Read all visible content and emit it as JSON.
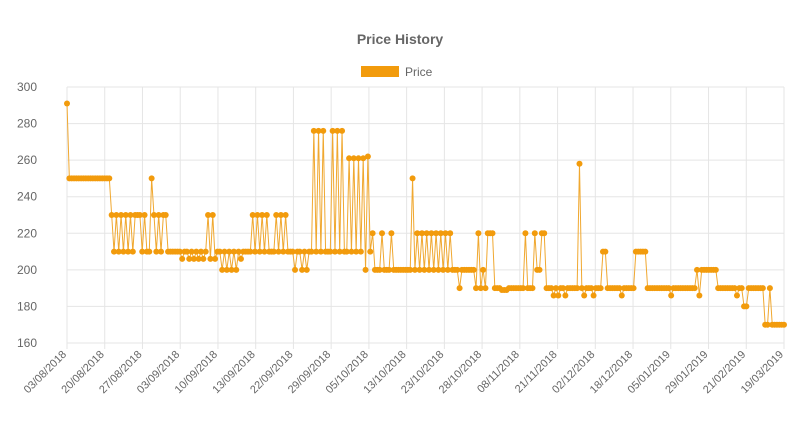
{
  "chart_data": {
    "type": "line",
    "title": "Price History",
    "legend": {
      "position": "top",
      "label": "Price"
    },
    "colors": {
      "line": "#f0a830",
      "point": "#f29b0c",
      "grid": "#e5e5e5",
      "text": "#666666",
      "title": "#666666"
    },
    "ylim": [
      160,
      300
    ],
    "yticks": [
      160,
      180,
      200,
      220,
      240,
      260,
      280,
      300
    ],
    "xtick_labels": [
      "03/08/2018",
      "20/08/2018",
      "27/08/2018",
      "03/09/2018",
      "10/09/2018",
      "13/09/2018",
      "22/09/2018",
      "29/09/2018",
      "05/10/2018",
      "13/10/2018",
      "23/10/2018",
      "28/10/2018",
      "08/11/2018",
      "21/11/2018",
      "02/12/2018",
      "18/12/2018",
      "05/01/2019",
      "29/01/2019",
      "21/02/2019",
      "19/03/2019"
    ],
    "grid": true,
    "series": [
      {
        "name": "Price",
        "values": [
          291,
          250,
          250,
          250,
          250,
          250,
          250,
          250,
          250,
          250,
          250,
          250,
          250,
          250,
          250,
          250,
          250,
          250,
          250,
          230,
          210,
          230,
          210,
          230,
          210,
          230,
          210,
          230,
          210,
          230,
          230,
          230,
          210,
          230,
          210,
          210,
          250,
          230,
          210,
          230,
          210,
          230,
          230,
          210,
          210,
          210,
          210,
          210,
          210,
          206,
          210,
          210,
          206,
          210,
          206,
          210,
          206,
          210,
          206,
          210,
          230,
          206,
          230,
          206,
          210,
          210,
          200,
          210,
          200,
          210,
          200,
          210,
          200,
          210,
          206,
          210,
          210,
          210,
          210,
          230,
          210,
          230,
          210,
          230,
          210,
          230,
          210,
          210,
          210,
          230,
          210,
          230,
          210,
          230,
          210,
          210,
          210,
          200,
          210,
          210,
          200,
          210,
          200,
          210,
          210,
          276,
          210,
          276,
          210,
          276,
          210,
          210,
          210,
          276,
          210,
          276,
          210,
          276,
          210,
          210,
          261,
          210,
          261,
          210,
          261,
          210,
          261,
          200,
          262,
          210,
          220,
          200,
          200,
          200,
          220,
          200,
          200,
          200,
          220,
          200,
          200,
          200,
          200,
          200,
          200,
          200,
          200,
          250,
          200,
          220,
          200,
          220,
          200,
          220,
          200,
          220,
          200,
          220,
          200,
          220,
          200,
          220,
          200,
          220,
          200,
          200,
          200,
          190,
          200,
          200,
          200,
          200,
          200,
          200,
          190,
          220,
          190,
          200,
          190,
          220,
          220,
          220,
          190,
          190,
          190,
          189,
          189,
          189,
          190,
          190,
          190,
          190,
          190,
          190,
          190,
          220,
          190,
          190,
          190,
          220,
          200,
          200,
          220,
          220,
          190,
          190,
          190,
          186,
          190,
          186,
          190,
          190,
          186,
          190,
          190,
          190,
          190,
          190,
          258,
          190,
          186,
          190,
          190,
          190,
          186,
          190,
          190,
          190,
          210,
          210,
          190,
          190,
          190,
          190,
          190,
          190,
          186,
          190,
          190,
          190,
          190,
          190,
          210,
          210,
          210,
          210,
          210,
          190,
          190,
          190,
          190,
          190,
          190,
          190,
          190,
          190,
          190,
          186,
          190,
          190,
          190,
          190,
          190,
          190,
          190,
          190,
          190,
          190,
          200,
          186,
          200,
          200,
          200,
          200,
          200,
          200,
          200,
          190,
          190,
          190,
          190,
          190,
          190,
          190,
          190,
          186,
          190,
          190,
          180,
          180,
          190,
          190,
          190,
          190,
          190,
          190,
          190,
          170,
          170,
          190,
          170,
          170,
          170,
          170,
          170,
          170
        ]
      }
    ]
  }
}
